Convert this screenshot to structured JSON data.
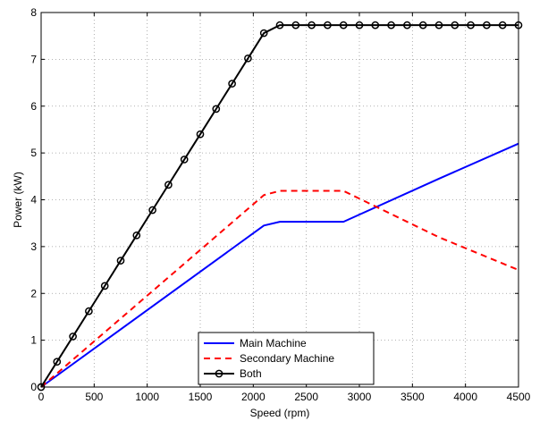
{
  "chart_data": {
    "type": "line",
    "title": "",
    "xlabel": "Speed (rpm)",
    "ylabel": "Power (kW)",
    "xlim": [
      0,
      4500
    ],
    "ylim": [
      0,
      8
    ],
    "xticks": [
      0,
      500,
      1000,
      1500,
      2000,
      2500,
      3000,
      3500,
      4000,
      4500
    ],
    "yticks": [
      0,
      1,
      2,
      3,
      4,
      5,
      6,
      7,
      8
    ],
    "grid": true,
    "legend_position": "bottom-center",
    "series": [
      {
        "name": "Main Machine",
        "color": "#0000ff",
        "style": "solid",
        "marker": "none",
        "x": [
          0,
          2100,
          2250,
          2850,
          3750,
          4500
        ],
        "y": [
          0,
          3.45,
          3.53,
          3.53,
          4.45,
          5.2
        ]
      },
      {
        "name": "Secondary Machine",
        "color": "#ff0000",
        "style": "dashed",
        "marker": "none",
        "x": [
          0,
          2100,
          2250,
          2850,
          3750,
          4500
        ],
        "y": [
          0,
          4.1,
          4.19,
          4.19,
          3.2,
          2.5
        ]
      },
      {
        "name": "Both",
        "color": "#000000",
        "style": "solid",
        "marker": "circle",
        "x": [
          0,
          150,
          300,
          450,
          600,
          750,
          900,
          1050,
          1200,
          1350,
          1500,
          1650,
          1800,
          1950,
          2100,
          2250,
          2400,
          2550,
          2700,
          2850,
          3000,
          3150,
          3300,
          3450,
          3600,
          3750,
          3900,
          4050,
          4200,
          4350,
          4500
        ],
        "y": [
          0,
          0.54,
          1.08,
          1.62,
          2.16,
          2.7,
          3.24,
          3.78,
          4.32,
          4.86,
          5.4,
          5.94,
          6.48,
          7.02,
          7.56,
          7.73,
          7.73,
          7.73,
          7.73,
          7.73,
          7.73,
          7.73,
          7.73,
          7.73,
          7.73,
          7.73,
          7.73,
          7.73,
          7.73,
          7.73,
          7.73
        ]
      }
    ]
  }
}
